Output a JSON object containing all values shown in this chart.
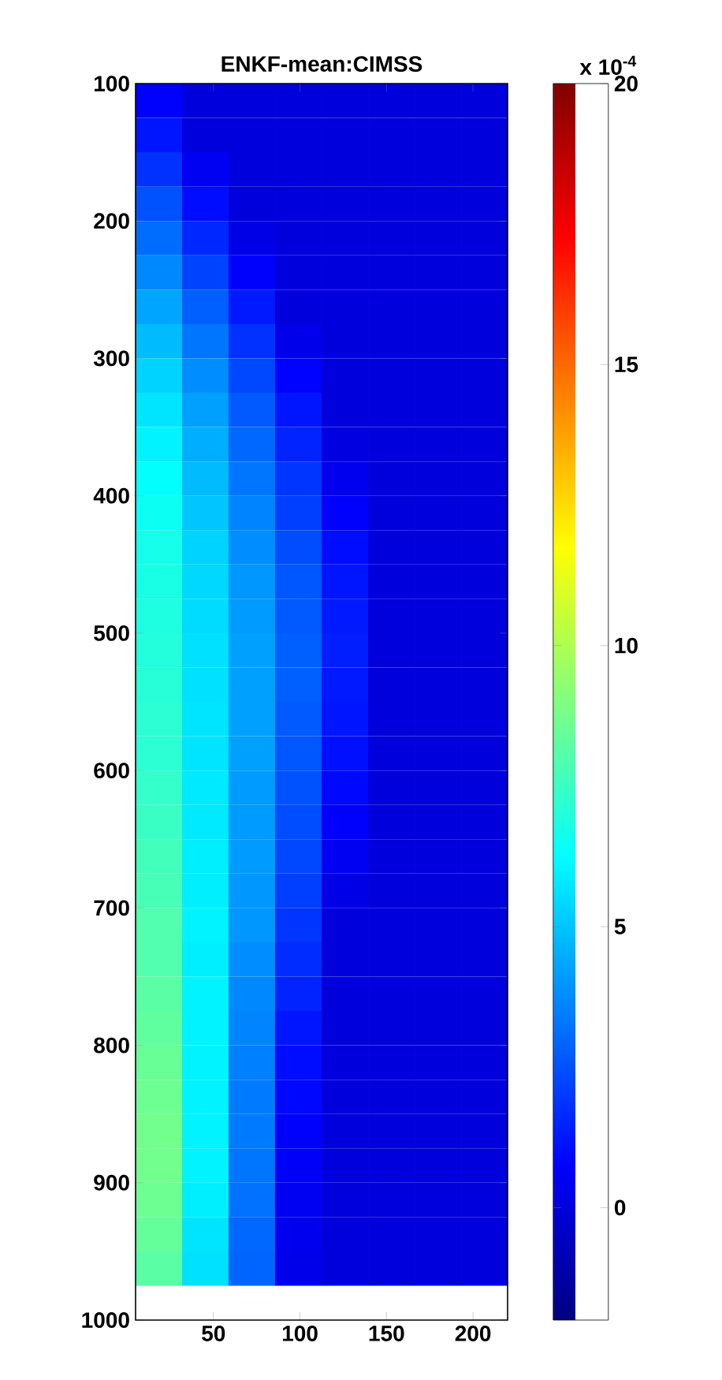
{
  "chart_data": {
    "type": "heatmap",
    "title": "ENKF-mean:CIMSS",
    "clabel": "x 10$^{-4}$",
    "x": [
      18.4375,
      45.3125,
      72.1875,
      99.0625,
      125.9375,
      152.8125,
      179.6875,
      206.5625
    ],
    "y": [
      112.5,
      137.5,
      162.5,
      187.5,
      212.5,
      237.5,
      262.5,
      287.5,
      312.5,
      337.5,
      362.5,
      387.5,
      412.5,
      437.5,
      462.5,
      487.5,
      512.5,
      537.5,
      562.5,
      587.5,
      612.5,
      637.5,
      662.5,
      687.5,
      712.5,
      737.5,
      762.5,
      787.5,
      812.5,
      837.5,
      862.5,
      887.5,
      912.5,
      937.5,
      962.5
    ],
    "cells": [
      [
        0.7,
        0,
        0,
        0,
        0,
        0,
        0,
        0
      ],
      [
        1.2,
        0,
        0,
        0,
        0,
        0,
        0,
        0
      ],
      [
        1.8,
        0.5,
        0,
        0,
        0,
        0,
        0,
        0
      ],
      [
        2.5,
        1.0,
        0,
        0,
        0,
        0,
        0,
        0
      ],
      [
        3.1,
        1.6,
        0.2,
        0,
        0,
        0,
        0,
        0
      ],
      [
        3.7,
        2.2,
        0.7,
        0,
        0,
        0,
        0,
        0
      ],
      [
        4.3,
        2.8,
        1.3,
        0,
        0,
        0,
        0,
        0
      ],
      [
        4.8,
        3.3,
        1.8,
        0.3,
        0,
        0,
        0,
        0
      ],
      [
        5.3,
        3.8,
        2.3,
        0.8,
        0,
        0,
        0,
        0
      ],
      [
        5.7,
        4.2,
        2.7,
        1.2,
        0,
        0,
        0,
        0
      ],
      [
        6.0,
        4.5,
        3.0,
        1.5,
        0.1,
        0,
        0,
        0
      ],
      [
        6.3,
        4.8,
        3.3,
        1.9,
        0.4,
        0,
        0,
        0
      ],
      [
        6.5,
        5.0,
        3.6,
        2.1,
        0.7,
        0,
        0,
        0
      ],
      [
        6.7,
        5.3,
        3.8,
        2.4,
        1.0,
        0,
        0,
        0
      ],
      [
        6.8,
        5.4,
        4.0,
        2.6,
        1.2,
        0,
        0,
        0
      ],
      [
        6.9,
        5.5,
        4.1,
        2.7,
        1.3,
        0,
        0,
        0
      ],
      [
        7.0,
        5.6,
        4.2,
        2.8,
        1.4,
        0,
        0,
        0
      ],
      [
        7.1,
        5.6,
        4.2,
        2.8,
        1.3,
        0,
        0,
        0
      ],
      [
        7.2,
        5.7,
        4.2,
        2.7,
        1.2,
        0,
        0,
        0
      ],
      [
        7.2,
        5.7,
        4.2,
        2.6,
        1.1,
        0,
        0,
        0
      ],
      [
        7.4,
        5.8,
        4.1,
        2.5,
        0.9,
        0,
        0,
        0
      ],
      [
        7.5,
        5.8,
        4.1,
        2.4,
        0.7,
        0,
        0,
        0
      ],
      [
        7.7,
        5.9,
        4.1,
        2.3,
        0.5,
        0,
        0,
        0
      ],
      [
        7.8,
        5.9,
        4.0,
        2.1,
        0.2,
        0,
        0,
        0
      ],
      [
        8.0,
        6.0,
        4.0,
        1.9,
        0,
        0,
        0,
        0
      ],
      [
        8.0,
        5.9,
        3.8,
        1.7,
        0,
        0,
        0,
        0
      ],
      [
        8.2,
        6.0,
        3.7,
        1.5,
        0,
        0,
        0,
        0
      ],
      [
        8.3,
        6.0,
        3.6,
        1.2,
        0,
        0,
        0,
        0
      ],
      [
        8.5,
        6.0,
        3.5,
        1.0,
        0,
        0,
        0,
        0
      ],
      [
        8.6,
        6.0,
        3.4,
        0.9,
        0,
        0,
        0,
        0
      ],
      [
        8.7,
        6.0,
        3.4,
        0.7,
        0,
        0,
        0,
        0
      ],
      [
        8.7,
        6.0,
        3.3,
        0.6,
        0,
        0,
        0,
        0
      ],
      [
        8.6,
        5.9,
        3.2,
        0.5,
        0,
        0,
        0,
        0
      ],
      [
        8.4,
        5.7,
        3.0,
        0.4,
        0,
        0,
        0,
        0
      ],
      [
        8.2,
        5.6,
        2.9,
        0.3,
        0,
        0,
        0,
        0
      ]
    ],
    "clim": [
      -2,
      20
    ],
    "cticks": [
      0,
      5,
      10,
      15,
      20
    ],
    "xlim": [
      5,
      220
    ],
    "xticks": [
      50,
      100,
      150,
      200
    ],
    "ylim": [
      1000,
      100
    ],
    "yticks": [
      100,
      200,
      300,
      400,
      500,
      600,
      700,
      800,
      900,
      1000
    ]
  }
}
